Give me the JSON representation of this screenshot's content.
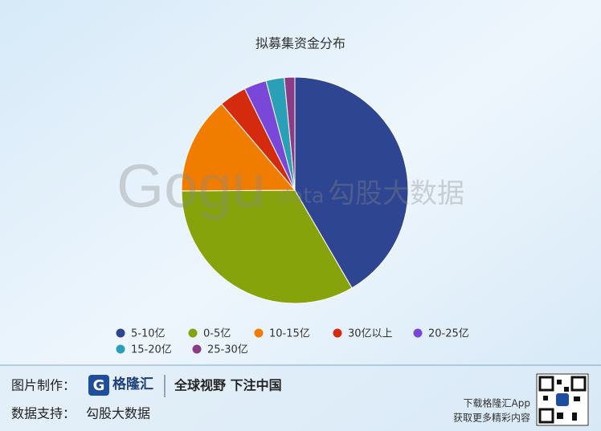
{
  "chart_data": {
    "type": "pie",
    "title": "拟募集资金分布",
    "categories": [
      "5-10亿",
      "0-5亿",
      "10-15亿",
      "30亿以上",
      "20-25亿",
      "15-20亿",
      "25-30亿"
    ],
    "values": [
      41.6,
      33.3,
      13.9,
      3.9,
      3.2,
      2.6,
      1.5
    ],
    "colors": [
      "#2e4591",
      "#86a30c",
      "#f07c00",
      "#d42a0d",
      "#7a48d8",
      "#2aa0b8",
      "#8b3c86"
    ]
  },
  "watermark": {
    "logo": "Gogu",
    "sub": "data",
    "name": "勾股大数据"
  },
  "footer": {
    "maker_label": "图片制作：",
    "maker": "格隆汇",
    "slogan": "全球视野 下注中国",
    "source_label": "数据支持：",
    "source": "勾股大数据",
    "app_line1": "下载格隆汇App",
    "app_line2": "获取更多精彩内容"
  }
}
